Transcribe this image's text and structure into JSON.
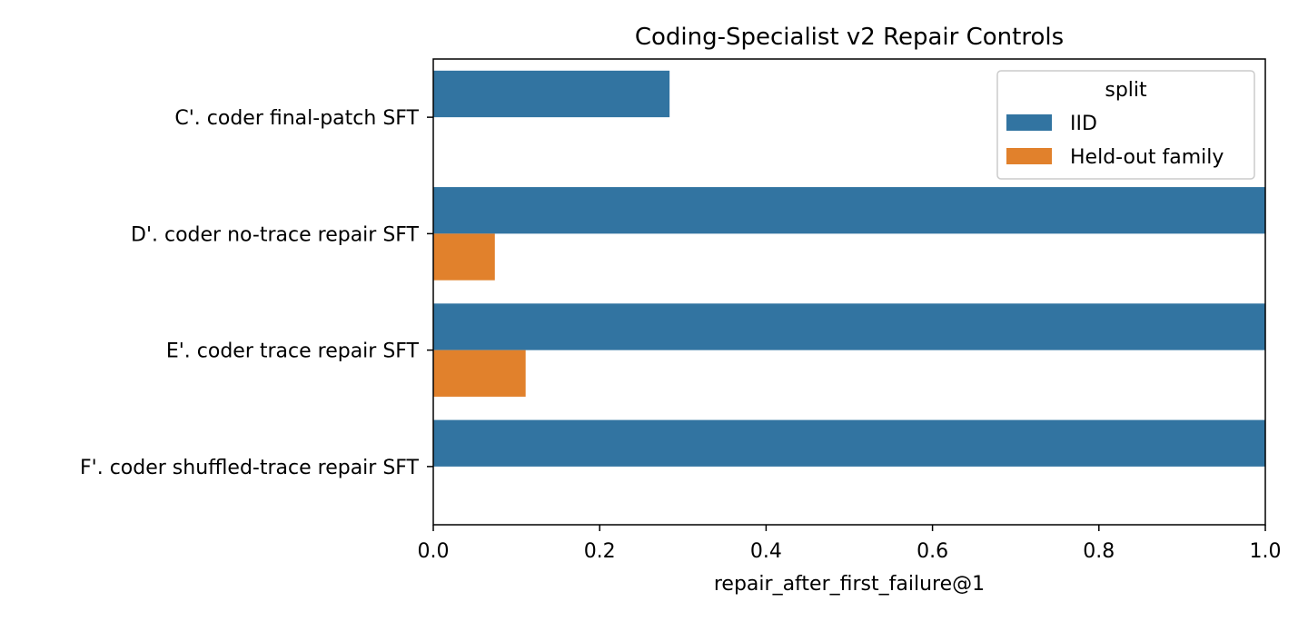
{
  "chart_data": {
    "type": "bar",
    "orientation": "horizontal",
    "title": "Coding-Specialist v2 Repair Controls",
    "xlabel": "repair_after_first_failure@1",
    "ylabel": "",
    "xlim": [
      0.0,
      1.0
    ],
    "xticks": [
      "0.0",
      "0.2",
      "0.4",
      "0.6",
      "0.8",
      "1.0"
    ],
    "grid": false,
    "legend_placement": "top-right",
    "categories": [
      "C'. coder final-patch SFT",
      "D'. coder no-trace repair SFT",
      "E'. coder trace repair SFT",
      "F'. coder shuffled-trace repair SFT"
    ],
    "legend": {
      "title": "split",
      "entries": [
        "IID",
        "Held-out family"
      ]
    },
    "series": [
      {
        "name": "IID",
        "color": "#3274a1",
        "values": [
          0.284,
          1.0,
          1.0,
          1.0
        ]
      },
      {
        "name": "Held-out family",
        "color": "#e1812c",
        "values": [
          0.0,
          0.074,
          0.111,
          0.0
        ]
      }
    ]
  }
}
